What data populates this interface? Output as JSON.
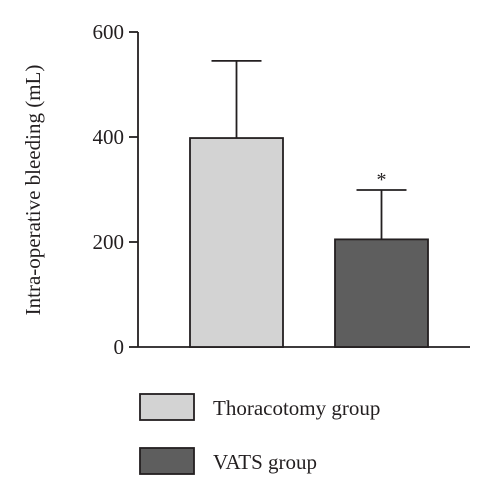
{
  "chart_data": {
    "type": "bar",
    "categories": [
      "Thoracotomy group",
      "VATS group"
    ],
    "values": [
      398,
      205
    ],
    "error_upper": [
      545,
      299
    ],
    "significance": [
      "",
      "*"
    ],
    "ylabel": "Intra-operative bleeding (mL)",
    "xlabel": "",
    "ylim": [
      0,
      600
    ],
    "yticks": [
      0,
      200,
      400,
      600
    ],
    "grid": false,
    "legend": "bottom",
    "colors": [
      "#d3d3d3",
      "#5e5e5e"
    ],
    "edge_color": "#231f20"
  }
}
